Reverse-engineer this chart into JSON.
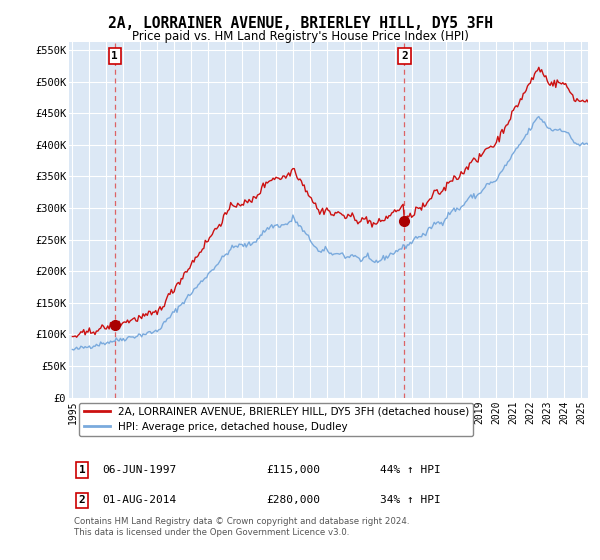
{
  "title": "2A, LORRAINER AVENUE, BRIERLEY HILL, DY5 3FH",
  "subtitle": "Price paid vs. HM Land Registry's House Price Index (HPI)",
  "legend_line1": "2A, LORRAINER AVENUE, BRIERLEY HILL, DY5 3FH (detached house)",
  "legend_line2": "HPI: Average price, detached house, Dudley",
  "annotation1_label": "1",
  "annotation1_date": "06-JUN-1997",
  "annotation1_price": "£115,000",
  "annotation1_hpi": "44% ↑ HPI",
  "annotation1_year": 1997.5,
  "annotation1_value": 115000,
  "annotation2_label": "2",
  "annotation2_date": "01-AUG-2014",
  "annotation2_price": "£280,000",
  "annotation2_hpi": "34% ↑ HPI",
  "annotation2_year": 2014.58,
  "annotation2_value": 280000,
  "ylim": [
    0,
    562500
  ],
  "xlim": [
    1994.8,
    2025.4
  ],
  "yticks": [
    0,
    50000,
    100000,
    150000,
    200000,
    250000,
    300000,
    350000,
    400000,
    450000,
    500000,
    550000
  ],
  "ytick_labels": [
    "£0",
    "£50K",
    "£100K",
    "£150K",
    "£200K",
    "£250K",
    "£300K",
    "£350K",
    "£400K",
    "£450K",
    "£500K",
    "£550K"
  ],
  "xticks": [
    1995,
    1996,
    1997,
    1998,
    1999,
    2000,
    2001,
    2002,
    2003,
    2004,
    2005,
    2006,
    2007,
    2008,
    2009,
    2010,
    2011,
    2012,
    2013,
    2014,
    2015,
    2016,
    2017,
    2018,
    2019,
    2020,
    2021,
    2022,
    2023,
    2024,
    2025
  ],
  "background_color": "#dce8f5",
  "grid_color": "#ffffff",
  "red_line_color": "#cc1111",
  "blue_line_color": "#7aaadd",
  "marker_color": "#aa0000",
  "vline_color": "#dd5555",
  "title_fontsize": 10.5,
  "subtitle_fontsize": 9,
  "footnote_line1": "Contains HM Land Registry data © Crown copyright and database right 2024.",
  "footnote_line2": "This data is licensed under the Open Government Licence v3.0."
}
